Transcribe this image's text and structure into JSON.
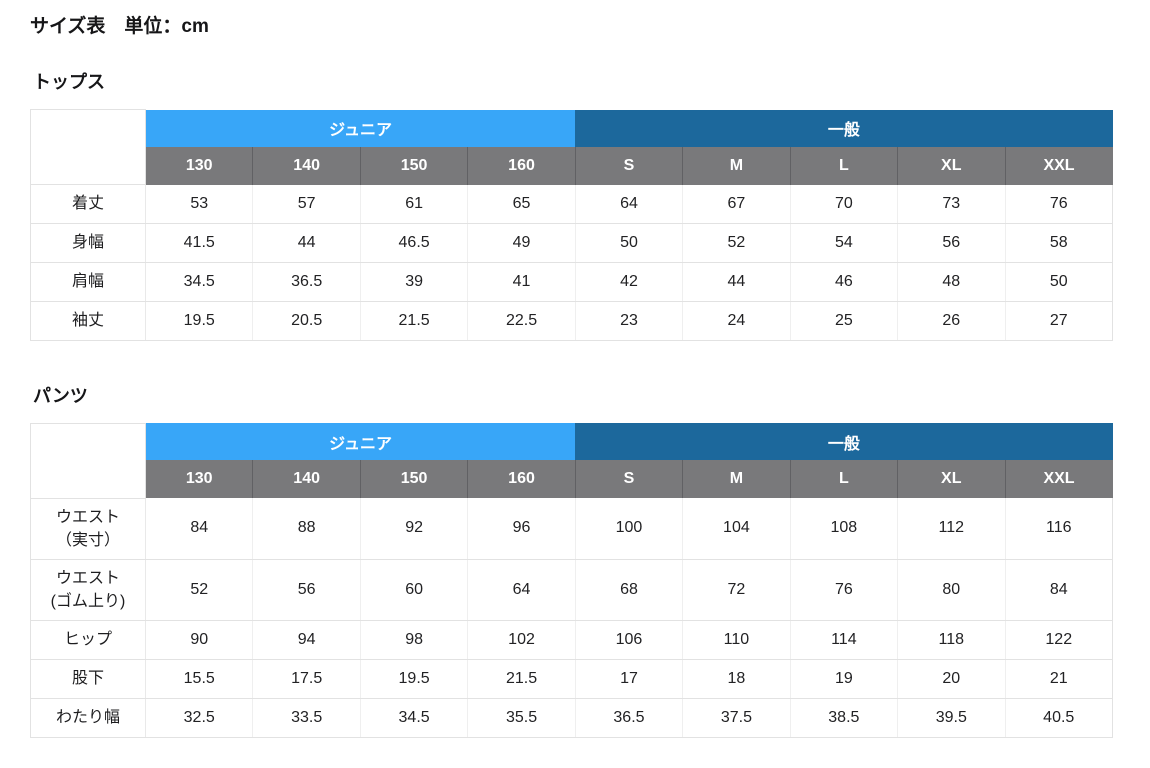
{
  "page": {
    "title": "サイズ表　単位：cm"
  },
  "colors": {
    "junior_header": "#38A6F8",
    "general_header": "#1C689C",
    "size_header_bg": "#79797B",
    "header_text": "#FFFFFF",
    "body_text": "#222224",
    "grid_line": "#E2E2E2"
  },
  "chart_data": [
    {
      "type": "table",
      "title": "トップス",
      "groups": [
        {
          "label": "ジュニア",
          "span": 4
        },
        {
          "label": "一般",
          "span": 5
        }
      ],
      "sizes": [
        "130",
        "140",
        "150",
        "160",
        "S",
        "M",
        "L",
        "XL",
        "XXL"
      ],
      "rows": [
        {
          "label": "着丈",
          "values": [
            "53",
            "57",
            "61",
            "65",
            "64",
            "67",
            "70",
            "73",
            "76"
          ]
        },
        {
          "label": "身幅",
          "values": [
            "41.5",
            "44",
            "46.5",
            "49",
            "50",
            "52",
            "54",
            "56",
            "58"
          ]
        },
        {
          "label": "肩幅",
          "values": [
            "34.5",
            "36.5",
            "39",
            "41",
            "42",
            "44",
            "46",
            "48",
            "50"
          ]
        },
        {
          "label": "袖丈",
          "values": [
            "19.5",
            "20.5",
            "21.5",
            "22.5",
            "23",
            "24",
            "25",
            "26",
            "27"
          ]
        }
      ]
    },
    {
      "type": "table",
      "title": "パンツ",
      "groups": [
        {
          "label": "ジュニア",
          "span": 4
        },
        {
          "label": "一般",
          "span": 5
        }
      ],
      "sizes": [
        "130",
        "140",
        "150",
        "160",
        "S",
        "M",
        "L",
        "XL",
        "XXL"
      ],
      "rows": [
        {
          "label": "ウエスト\n（実寸）",
          "values": [
            "84",
            "88",
            "92",
            "96",
            "100",
            "104",
            "108",
            "112",
            "116"
          ]
        },
        {
          "label": "ウエスト\n(ゴム上り)",
          "values": [
            "52",
            "56",
            "60",
            "64",
            "68",
            "72",
            "76",
            "80",
            "84"
          ]
        },
        {
          "label": "ヒップ",
          "values": [
            "90",
            "94",
            "98",
            "102",
            "106",
            "110",
            "114",
            "118",
            "122"
          ]
        },
        {
          "label": "股下",
          "values": [
            "15.5",
            "17.5",
            "19.5",
            "21.5",
            "17",
            "18",
            "19",
            "20",
            "21"
          ]
        },
        {
          "label": "わたり幅",
          "values": [
            "32.5",
            "33.5",
            "34.5",
            "35.5",
            "36.5",
            "37.5",
            "38.5",
            "39.5",
            "40.5"
          ]
        }
      ]
    }
  ]
}
